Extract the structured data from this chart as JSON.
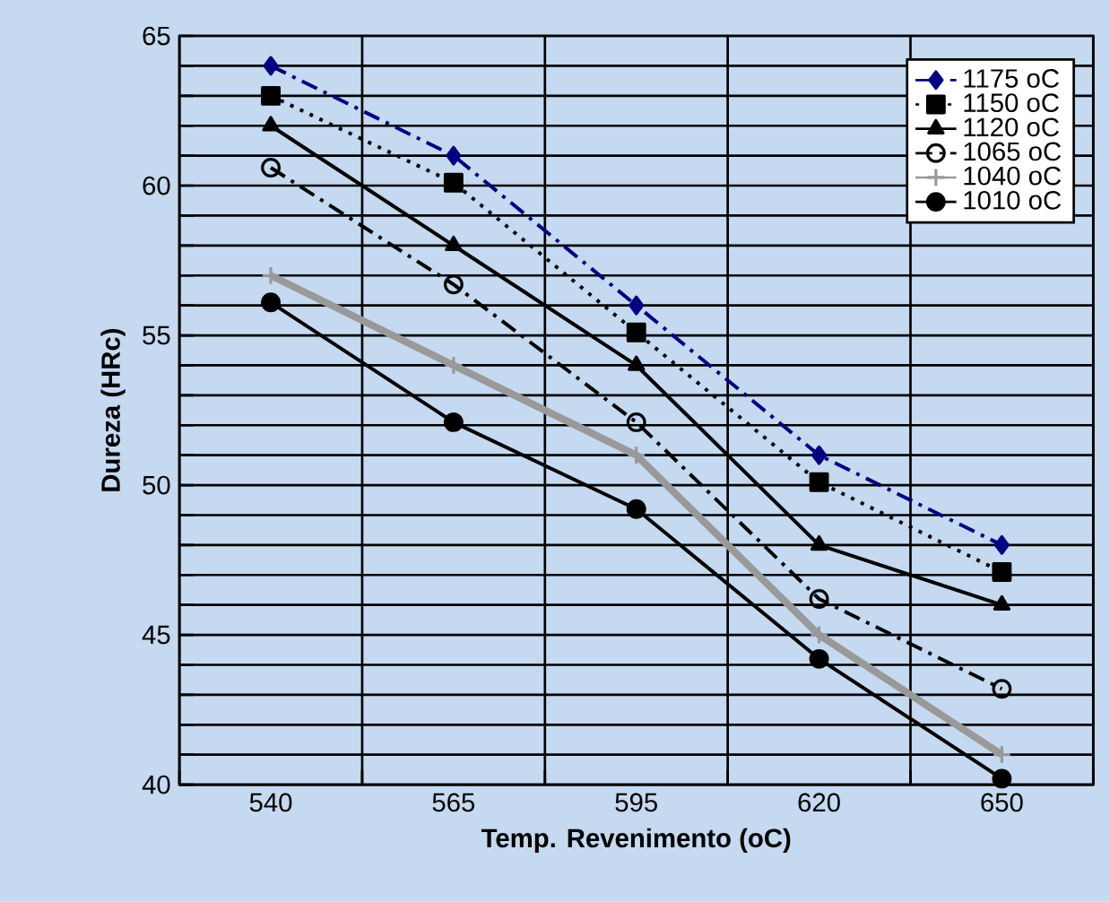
{
  "chart_data": {
    "type": "line",
    "xlabel": "Temp. Revenimento (oC)",
    "ylabel": "Dureza (HRc)",
    "categories": [
      "540",
      "565",
      "595",
      "620",
      "650"
    ],
    "ylim": [
      40,
      65
    ],
    "yticks": [
      40,
      45,
      50,
      55,
      60,
      65
    ],
    "grid": true,
    "legend": "top right",
    "series": [
      {
        "name": "1175 oC",
        "color": "#000080",
        "marker": "diamond",
        "line_style": "dashed",
        "values": [
          64,
          61,
          56,
          51,
          48
        ]
      },
      {
        "name": "1150 oC",
        "color": "#000000",
        "marker": "square",
        "line_style": "dotted",
        "values": [
          63,
          60.1,
          55.1,
          50.1,
          47.1
        ]
      },
      {
        "name": "1120 oC",
        "color": "#000000",
        "marker": "triangle",
        "line_style": "solid",
        "values": [
          62,
          58,
          54,
          48,
          46
        ]
      },
      {
        "name": "1065 oC",
        "color": "#000000",
        "marker": "circle",
        "line_style": "dashed",
        "values": [
          60.6,
          56.7,
          52.1,
          46.2,
          43.2
        ]
      },
      {
        "name": "1040 oC",
        "color": "#999999",
        "marker": "cross",
        "line_style": "solid",
        "values": [
          57,
          54,
          51,
          45,
          41
        ]
      },
      {
        "name": "1010 oC",
        "color": "#000000",
        "marker": "circle",
        "line_style": "solid",
        "values": [
          56.1,
          52.1,
          49.2,
          44.2,
          40.2
        ]
      }
    ]
  }
}
